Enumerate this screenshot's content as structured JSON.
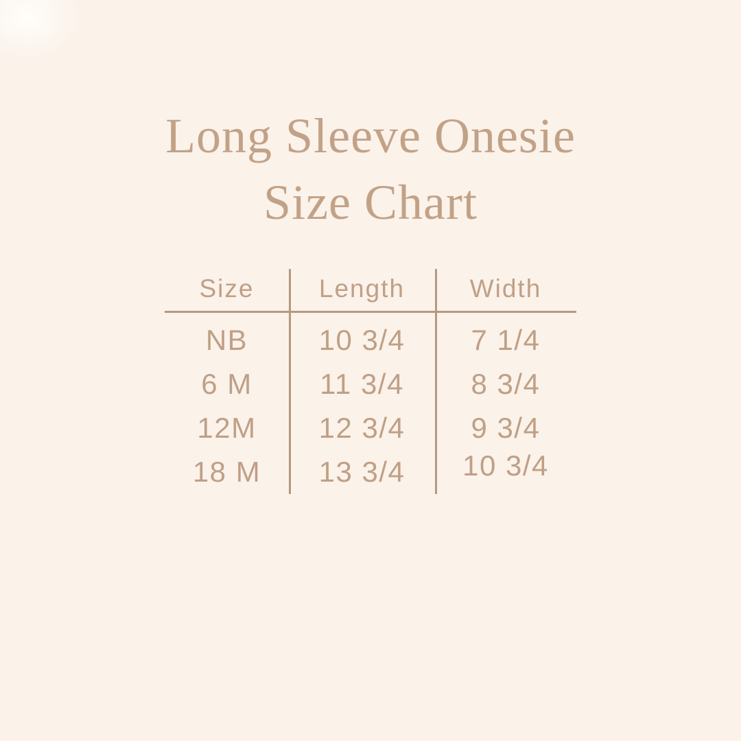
{
  "page": {
    "background": "#fbf2ea",
    "title_color": "#c2a287",
    "text_color": "#bfa086",
    "line_color": "#b5997f"
  },
  "title": {
    "line1": "Long Sleeve Onesie",
    "line2": "Size Chart"
  },
  "chart_data": {
    "type": "table",
    "title": "Long Sleeve Onesie Size Chart",
    "columns": [
      "Size",
      "Length",
      "Width"
    ],
    "rows": [
      [
        "NB",
        "10 3/4",
        "7 1/4"
      ],
      [
        "6 M",
        "11 3/4",
        "8 3/4"
      ],
      [
        "12M",
        "12 3/4",
        "9 3/4"
      ],
      [
        "18 M",
        "13 3/4",
        "10 3/4"
      ]
    ],
    "layout": {
      "grid": "off",
      "column_dividers": true,
      "header_rule": true
    }
  }
}
